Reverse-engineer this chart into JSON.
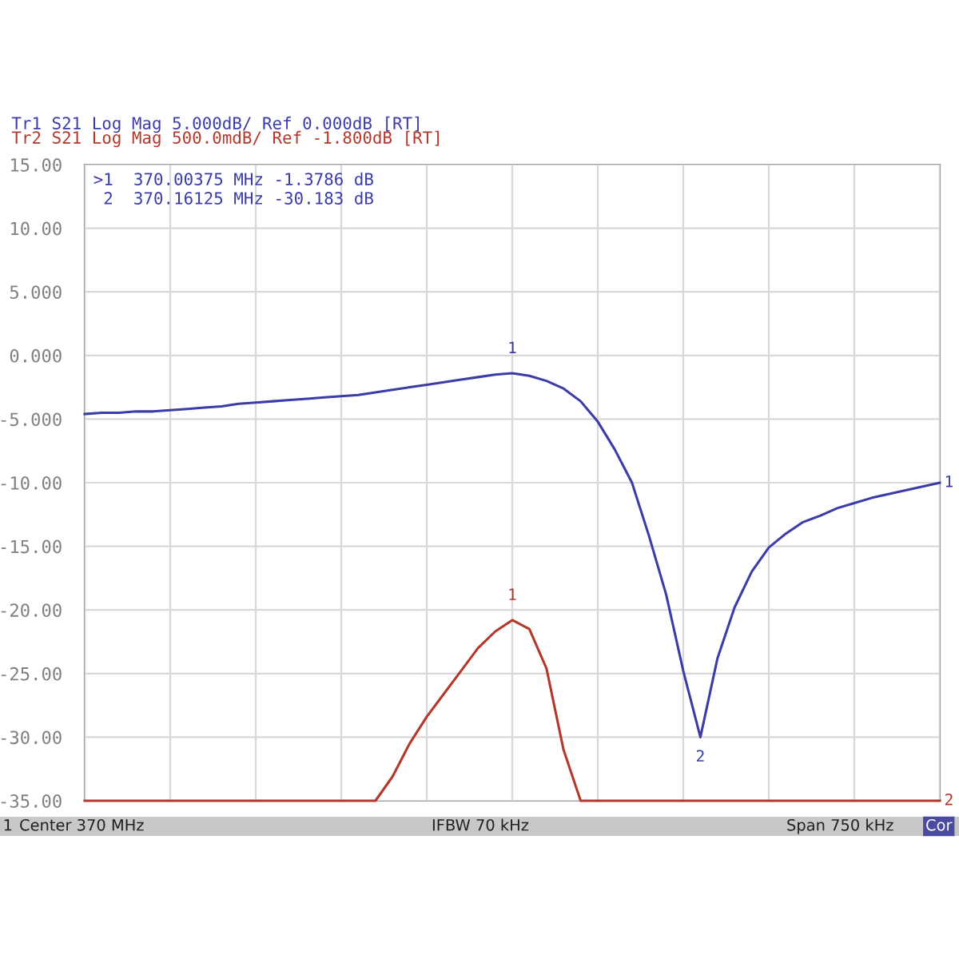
{
  "chart_data": {
    "type": "line",
    "categories": [
      null,
      null,
      null,
      null,
      null,
      null,
      null,
      null,
      null,
      null,
      null,
      null,
      null,
      null,
      null,
      null,
      null,
      null,
      null,
      null,
      null,
      null,
      null,
      null,
      null,
      null,
      null,
      null,
      null,
      null,
      null,
      null,
      null,
      null,
      null,
      null,
      null,
      null,
      null,
      null,
      null,
      null,
      null,
      null,
      null,
      null,
      null,
      null,
      null,
      null,
      null
    ],
    "ylim": [
      -35,
      15
    ],
    "yticks": [
      {
        "value": 15,
        "label": "15.00"
      },
      {
        "value": 10,
        "label": "10.00"
      },
      {
        "value": 5,
        "label": "5.000"
      },
      {
        "value": 0,
        "label": "0.000"
      },
      {
        "value": -5,
        "label": "-5.000"
      },
      {
        "value": -10,
        "label": "-10.00"
      },
      {
        "value": -15,
        "label": "-15.00"
      },
      {
        "value": -20,
        "label": "-20.00"
      },
      {
        "value": -25,
        "label": "-25.00"
      },
      {
        "value": -30,
        "label": "-30.00"
      },
      {
        "value": -35,
        "label": "-35.00"
      }
    ],
    "tick_labels": "y",
    "grid": true,
    "series": [
      {
        "name": "Tr1 S21 Log Mag 5.000dB/ Ref 0.000dB [RT]",
        "color": "#3c3ca8",
        "values": [
          -4.6,
          -4.5,
          -4.5,
          -4.4,
          -4.4,
          -4.3,
          -4.2,
          -4.1,
          -4.0,
          -3.8,
          -3.7,
          -3.6,
          -3.5,
          -3.4,
          -3.3,
          -3.2,
          -3.1,
          -2.9,
          -2.7,
          -2.5,
          -2.3,
          -2.1,
          -1.9,
          -1.7,
          -1.5,
          -1.4,
          -1.6,
          -2.0,
          -2.6,
          -3.6,
          -5.2,
          -7.4,
          -10.0,
          -14.2,
          -18.8,
          -24.8,
          -30.0,
          -23.8,
          -19.8,
          -17.0,
          -15.1,
          -14.0,
          -13.1,
          -12.6,
          -12.0,
          -11.6,
          -11.2,
          -10.9,
          -10.6,
          -10.3,
          -10.0
        ]
      },
      {
        "name": "Tr2 S21 Log Mag 500.0mdB/ Ref -1.800dB [RT]",
        "color": "#b4372c",
        "values": [
          -35,
          -35,
          -35,
          -35,
          -35,
          -35,
          -35,
          -35,
          -35,
          -35,
          -35,
          -35,
          -35,
          -35,
          -35,
          -35,
          -35,
          -35,
          -33.1,
          -30.5,
          -28.4,
          -26.6,
          -24.8,
          -23.0,
          -21.7,
          -20.8,
          -21.5,
          -24.6,
          -31.0,
          -35,
          -35,
          -35,
          -35,
          -35,
          -35,
          -35,
          -35,
          -35,
          -35,
          -35,
          -35,
          -35,
          -35,
          -35,
          -35,
          -35,
          -35,
          -35,
          -35,
          -35,
          -35
        ]
      }
    ],
    "annotations": [
      ">1  370.00375 MHz -1.3786 dB",
      " 2  370.16125 MHz -30.183 dB",
      "1",
      "Center 370 MHz",
      "IFBW 70 kHz",
      "Span 750 kHz",
      "Cor",
      "1",
      "2",
      "1",
      "1",
      "2"
    ]
  }
}
